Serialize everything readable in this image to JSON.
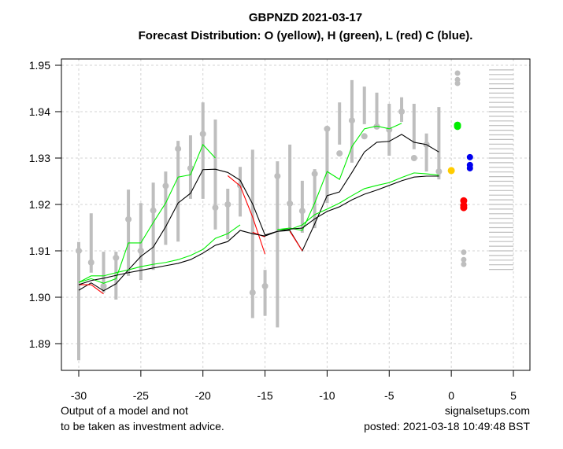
{
  "chart_data": {
    "type": "line",
    "title": "GBPNZD 2021-03-17",
    "subtitle": "Forecast Distribution: O (yellow), H (green), L (red) C (blue).",
    "xlabel": "",
    "ylabel": "",
    "xlim": [
      -31,
      6
    ],
    "ylim": [
      1.884,
      1.951
    ],
    "grid": true,
    "x_ticks": [
      -30,
      -25,
      -20,
      -15,
      -10,
      -5,
      0,
      5
    ],
    "x_tick_labels": [
      "-30",
      "-25",
      "-20",
      "-15",
      "-10",
      "-5",
      "0",
      "5"
    ],
    "y_ticks": [
      1.89,
      1.9,
      1.91,
      1.92,
      1.93,
      1.94,
      1.95
    ],
    "y_tick_labels": [
      "1.89",
      "1.90",
      "1.91",
      "1.92",
      "1.93",
      "1.94",
      "1.95"
    ],
    "colors": {
      "bars": "#bebebe",
      "open": "#ffcc00",
      "high": "#00ee00",
      "low": "#ff0000",
      "close": "#0000ee",
      "ma": "#000000",
      "grid": "#d3d3d3"
    },
    "history_bars": {
      "x": [
        -30,
        -29,
        -28,
        -27,
        -26,
        -25,
        -24,
        -23,
        -22,
        -21,
        -20,
        -19,
        -18,
        -17,
        -16,
        -15,
        -14,
        -13,
        -12,
        -11,
        -10,
        -9,
        -8,
        -7,
        -6,
        -5,
        -4,
        -3,
        -2,
        -1
      ],
      "high": [
        1.9119,
        1.9181,
        1.9098,
        1.9098,
        1.9232,
        1.9203,
        1.9247,
        1.9271,
        1.9337,
        1.9349,
        1.942,
        1.9383,
        1.9234,
        1.9281,
        1.9318,
        1.9059,
        1.9293,
        1.9329,
        1.9251,
        1.9276,
        1.9363,
        1.942,
        1.9468,
        1.9454,
        1.9441,
        1.9417,
        1.9431,
        1.9417,
        1.9353,
        1.941
      ],
      "low": [
        1.8864,
        1.9053,
        1.901,
        1.8995,
        1.9046,
        1.9037,
        1.9059,
        1.9113,
        1.912,
        1.9212,
        1.9212,
        1.9146,
        1.9125,
        1.9174,
        1.8955,
        1.896,
        1.8935,
        1.9149,
        1.9139,
        1.9149,
        1.9203,
        1.9329,
        1.929,
        1.9373,
        1.9373,
        1.9305,
        1.9378,
        1.9319,
        1.9271,
        1.9254
      ],
      "close": [
        1.91,
        1.9075,
        1.9024,
        1.9085,
        1.9168,
        1.91,
        1.9187,
        1.924,
        1.932,
        1.9278,
        1.9352,
        1.9193,
        1.92,
        1.9241,
        1.901,
        1.9024,
        1.9261,
        1.9202,
        1.9186,
        1.9266,
        1.9363,
        1.931,
        1.9381,
        1.9347,
        1.9368,
        1.9361,
        1.94,
        1.93,
        1.9329,
        1.9271
      ]
    },
    "series": [
      {
        "name": "fast-ma-high",
        "color": "#00ee00",
        "x": [
          -30,
          -29,
          -28,
          -27,
          -26,
          -25,
          -24,
          -23,
          -22,
          -21,
          -20,
          -19
        ],
        "values": [
          1.9032,
          1.904,
          1.903,
          1.904,
          1.9117,
          1.9117,
          1.9161,
          1.9203,
          1.9259,
          1.9264,
          1.9329,
          1.93
        ]
      },
      {
        "name": "fast-ma-high-2",
        "color": "#00ee00",
        "x": [
          -14,
          -13,
          -12,
          -11,
          -10,
          -9,
          -8,
          -7,
          -6,
          -5,
          -4
        ],
        "values": [
          1.9146,
          1.9149,
          1.9144,
          1.9203,
          1.9271,
          1.9254,
          1.9325,
          1.9363,
          1.9369,
          1.9363,
          1.9375
        ]
      },
      {
        "name": "fast-ma-close",
        "color": "#000000",
        "x": [
          -30,
          -29,
          -28,
          -27,
          -26,
          -25,
          -24,
          -23,
          -22,
          -21,
          -20,
          -19,
          -18,
          -17,
          -16,
          -15,
          -14,
          -13,
          -12,
          -11,
          -10,
          -9,
          -8,
          -7,
          -6,
          -5,
          -4,
          -3,
          -2,
          -1
        ],
        "values": [
          1.9015,
          1.9031,
          1.9014,
          1.9029,
          1.9059,
          1.9088,
          1.9108,
          1.9152,
          1.9203,
          1.9224,
          1.9275,
          1.9276,
          1.9269,
          1.9252,
          1.9201,
          1.9134,
          1.9142,
          1.9144,
          1.91,
          1.9158,
          1.9219,
          1.9227,
          1.9269,
          1.9313,
          1.9334,
          1.9336,
          1.9351,
          1.9334,
          1.9329,
          1.9313
        ]
      },
      {
        "name": "fast-ma-low",
        "color": "#ff0000",
        "x": [
          -30,
          -29,
          -28
        ],
        "values": [
          1.9027,
          1.9027,
          1.9007
        ]
      },
      {
        "name": "fast-ma-low-2",
        "color": "#ff0000",
        "x": [
          -18,
          -17,
          -16,
          -15
        ],
        "values": [
          1.9262,
          1.924,
          1.9173,
          1.9093
        ]
      },
      {
        "name": "fast-ma-low-3",
        "color": "#ff0000",
        "x": [
          -16,
          -15
        ],
        "values": [
          1.914,
          1.913
        ]
      },
      {
        "name": "fast-ma-low-4",
        "color": "#ff0000",
        "x": [
          -13,
          -12
        ],
        "values": [
          1.9142,
          1.91
        ]
      },
      {
        "name": "slow-ma-high",
        "color": "#00ee00",
        "x": [
          -30,
          -29,
          -28,
          -27,
          -26,
          -25,
          -24,
          -23,
          -22,
          -21,
          -20,
          -19,
          -18,
          -17
        ],
        "values": [
          1.9032,
          1.9046,
          1.9046,
          1.9053,
          1.9059,
          1.9066,
          1.9071,
          1.9075,
          1.9081,
          1.909,
          1.9103,
          1.9127,
          1.9137,
          1.9156
        ]
      },
      {
        "name": "slow-ma-high-2",
        "color": "#00ee00",
        "x": [
          -14,
          -13,
          -12,
          -11,
          -10,
          -9,
          -8,
          -7,
          -6,
          -5,
          -4,
          -3,
          -2,
          -1
        ],
        "values": [
          1.9146,
          1.9146,
          1.9156,
          1.9178,
          1.919,
          1.9203,
          1.9219,
          1.9234,
          1.9241,
          1.9247,
          1.9258,
          1.9268,
          1.9266,
          1.9263
        ]
      },
      {
        "name": "slow-ma-close",
        "color": "#000000",
        "x": [
          -30,
          -29,
          -28,
          -27,
          -26,
          -25,
          -24,
          -23,
          -22,
          -21,
          -20,
          -19,
          -18,
          -17,
          -16,
          -15,
          -14,
          -13,
          -12,
          -11,
          -10,
          -9,
          -8,
          -7,
          -6,
          -5,
          -4,
          -3,
          -2,
          -1
        ],
        "values": [
          1.9027,
          1.9036,
          1.9041,
          1.9047,
          1.9053,
          1.9058,
          1.9063,
          1.9068,
          1.9073,
          1.9081,
          1.9095,
          1.9112,
          1.912,
          1.9144,
          1.9137,
          1.9132,
          1.9142,
          1.9147,
          1.9149,
          1.9169,
          1.9185,
          1.9195,
          1.921,
          1.9222,
          1.9231,
          1.9241,
          1.9251,
          1.9259,
          1.9261,
          1.9261
        ]
      }
    ],
    "forecast": {
      "open": {
        "x": 0,
        "values": [
          1.9273
        ]
      },
      "high": {
        "x": 0.5,
        "values": [
          1.9371,
          1.9368
        ]
      },
      "low": {
        "x": 1.0,
        "values": [
          1.9208,
          1.9198,
          1.9193
        ]
      },
      "close": {
        "x": 1.5,
        "values": [
          1.9302,
          1.9285,
          1.9278
        ]
      },
      "upper_extremes": {
        "x": 0.5,
        "values": [
          1.9483,
          1.9469,
          1.9461
        ]
      },
      "lower_extremes": {
        "x": 1.0,
        "values": [
          1.9097,
          1.9081,
          1.9071
        ]
      }
    },
    "distribution_levels": [
      1.949,
      1.948,
      1.947,
      1.946,
      1.945,
      1.944,
      1.943,
      1.942,
      1.941,
      1.94,
      1.939,
      1.938,
      1.937,
      1.936,
      1.935,
      1.934,
      1.933,
      1.932,
      1.931,
      1.93,
      1.929,
      1.928,
      1.927,
      1.926,
      1.925,
      1.924,
      1.923,
      1.922,
      1.921,
      1.92,
      1.919,
      1.918,
      1.917,
      1.916,
      1.915,
      1.914,
      1.913,
      1.912,
      1.911,
      1.91,
      1.909,
      1.908,
      1.907,
      1.906
    ]
  },
  "footer": {
    "disclaimer_line1": "Output of a model and not",
    "disclaimer_line2": "to be taken as investment advice.",
    "site": "signalsetups.com",
    "posted": "posted: 2021-03-18 10:49:48 BST"
  }
}
